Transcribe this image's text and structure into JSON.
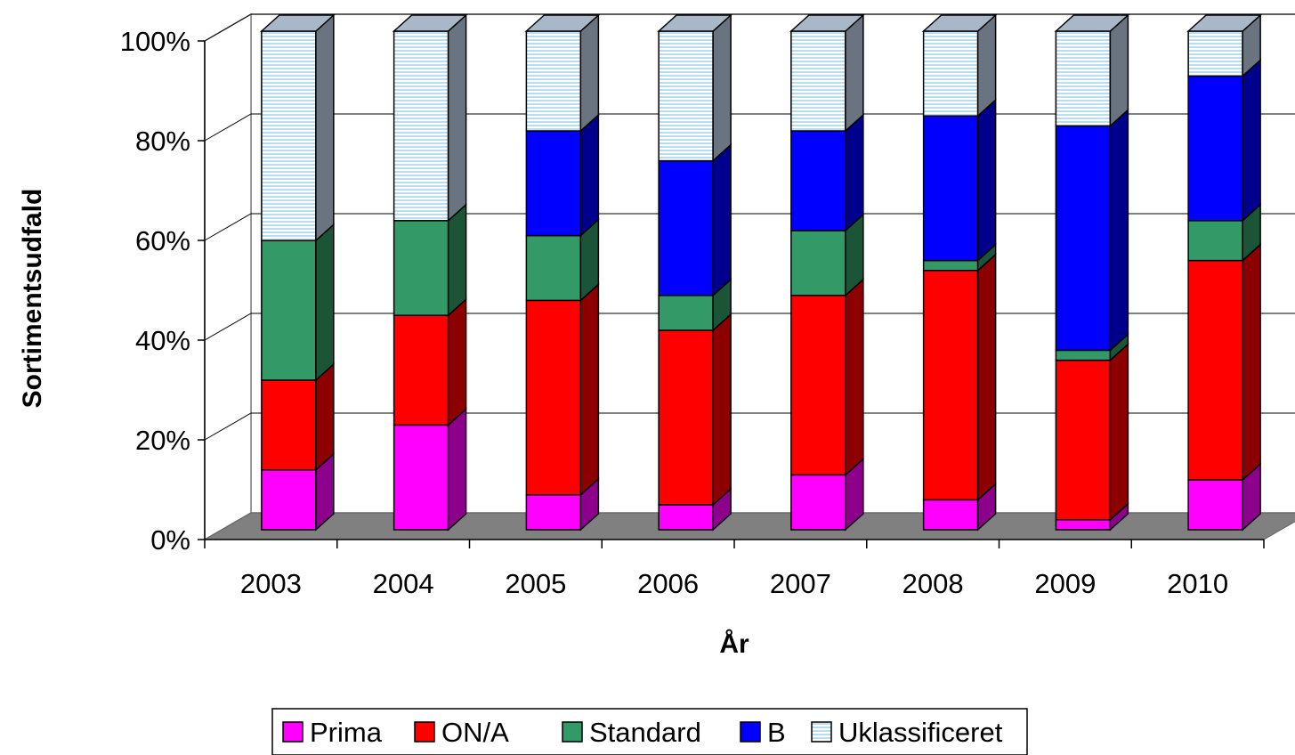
{
  "chart_data": {
    "type": "bar",
    "stacked": "percent",
    "style": "3d-column",
    "categories": [
      "2003",
      "2004",
      "2005",
      "2006",
      "2007",
      "2008",
      "2009",
      "2010"
    ],
    "series": [
      {
        "name": "Prima",
        "color": "#FF00FF",
        "values": [
          12,
          21,
          7,
          5,
          11,
          6,
          2,
          10
        ]
      },
      {
        "name": "ON/A",
        "color": "#FF0000",
        "values": [
          18,
          22,
          39,
          35,
          36,
          46,
          32,
          44
        ]
      },
      {
        "name": "Standard",
        "color": "#339966",
        "values": [
          28,
          19,
          13,
          7,
          13,
          2,
          2,
          8
        ]
      },
      {
        "name": "B",
        "color": "#0000FF",
        "values": [
          0,
          0,
          21,
          27,
          20,
          29,
          45,
          29
        ]
      },
      {
        "name": "Uklassificeret",
        "color": "#CCECFF",
        "values": [
          42,
          38,
          20,
          26,
          20,
          17,
          19,
          9
        ]
      }
    ],
    "y_ticks": [
      "0%",
      "20%",
      "40%",
      "60%",
      "80%",
      "100%"
    ],
    "ylim": [
      0,
      100
    ],
    "xlabel": "År",
    "ylabel": "Sortimentsudfald",
    "grid": true,
    "legend_position": "bottom"
  }
}
